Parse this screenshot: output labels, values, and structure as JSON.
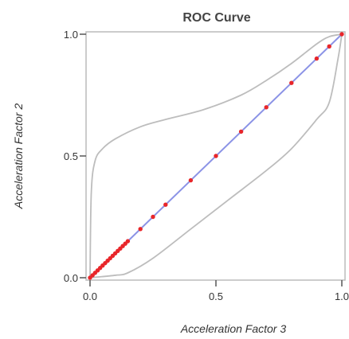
{
  "chart_data": {
    "type": "line",
    "title": "ROC Curve",
    "xlabel": "Acceleration Factor 3",
    "ylabel": "Acceleration Factor 2",
    "xlim": [
      0,
      1
    ],
    "ylim": [
      0,
      1
    ],
    "xticks": [
      0.0,
      0.5,
      1.0
    ],
    "yticks": [
      0.0,
      0.5,
      1.0
    ],
    "xtick_labels": [
      "0.0",
      "0.5",
      "1.0"
    ],
    "ytick_labels": [
      "0.0",
      "0.5",
      "1.0"
    ],
    "grid": false,
    "legend": "none",
    "colors": {
      "line": "#8b93e6",
      "points": "#e8262a",
      "band": "#bdbdbd",
      "frame": "#bcbcbc",
      "text": "#333333"
    },
    "series": [
      {
        "type": "line",
        "x": [
          0.0,
          1.0
        ],
        "y": [
          0.0,
          1.0
        ]
      },
      {
        "type": "scatter",
        "x": [
          0.0,
          0.01,
          0.02,
          0.03,
          0.04,
          0.05,
          0.06,
          0.07,
          0.08,
          0.09,
          0.1,
          0.11,
          0.12,
          0.13,
          0.14,
          0.15,
          0.2,
          0.25,
          0.3,
          0.4,
          0.5,
          0.6,
          0.7,
          0.8,
          0.9,
          0.95,
          1.0
        ],
        "y": [
          0.0,
          0.01,
          0.02,
          0.03,
          0.04,
          0.05,
          0.06,
          0.07,
          0.08,
          0.09,
          0.1,
          0.11,
          0.12,
          0.13,
          0.14,
          0.15,
          0.2,
          0.25,
          0.3,
          0.4,
          0.5,
          0.6,
          0.7,
          0.8,
          0.9,
          0.95,
          1.0
        ]
      }
    ],
    "confidence_band": {
      "upper": {
        "x": [
          0.0,
          0.005,
          0.02,
          0.05,
          0.1,
          0.2,
          0.3,
          0.45,
          0.6,
          0.7,
          0.8,
          0.9,
          0.95,
          1.0
        ],
        "y": [
          0.0,
          0.35,
          0.48,
          0.53,
          0.57,
          0.62,
          0.65,
          0.69,
          0.75,
          0.81,
          0.88,
          0.96,
          0.99,
          1.0
        ]
      },
      "lower": {
        "x": [
          0.0,
          0.1,
          0.15,
          0.25,
          0.4,
          0.55,
          0.7,
          0.8,
          0.9,
          0.95,
          0.985,
          1.0
        ],
        "y": [
          0.0,
          0.01,
          0.02,
          0.08,
          0.2,
          0.32,
          0.44,
          0.53,
          0.65,
          0.72,
          0.9,
          1.0
        ]
      }
    }
  }
}
